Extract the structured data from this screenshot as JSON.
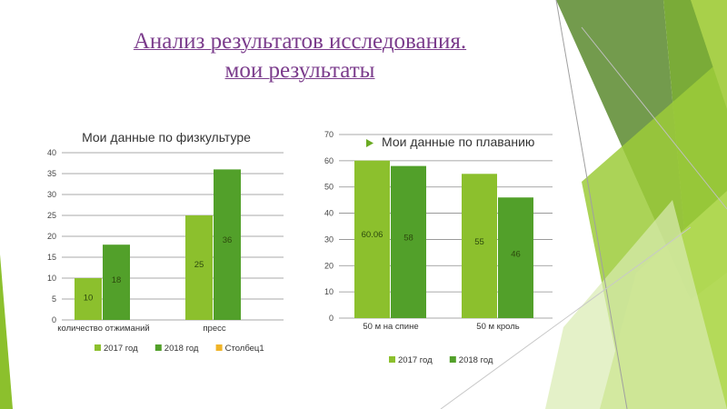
{
  "slide": {
    "title_line1": "Анализ результатов исследования.",
    "title_line2": "мои результаты"
  },
  "colors": {
    "series_2017": "#8cc02d",
    "series_2018": "#52a02a",
    "series_col1": "#f0b428",
    "title": "#7b3c8c",
    "grid": "#8c8c8c"
  },
  "chart_data": [
    {
      "type": "bar",
      "title": "Мои данные по физкультуре",
      "categories": [
        "количество отжиманий",
        "пресс"
      ],
      "series": [
        {
          "name": "2017 год",
          "values": [
            10,
            25
          ],
          "labels": [
            "10",
            "25"
          ]
        },
        {
          "name": "2018 год",
          "values": [
            18,
            36
          ],
          "labels": [
            "18",
            "36"
          ]
        },
        {
          "name": "Столбец1",
          "values": [
            null,
            null
          ],
          "labels": [
            null,
            null
          ]
        }
      ],
      "ylim": [
        0,
        40
      ],
      "yticks": [
        "0",
        "5",
        "10",
        "15",
        "20",
        "25",
        "30",
        "35",
        "40"
      ],
      "grid": true,
      "legend": "bottom"
    },
    {
      "type": "bar",
      "title": "Мои данные по плаванию",
      "categories": [
        "50 м на спине",
        "50 м кроль"
      ],
      "series": [
        {
          "name": "2017 год",
          "values": [
            60.06,
            55
          ],
          "labels": [
            "60.06",
            "55"
          ]
        },
        {
          "name": "2018 год",
          "values": [
            58,
            46
          ],
          "labels": [
            "58",
            "46"
          ]
        }
      ],
      "ylim": [
        0,
        70
      ],
      "yticks": [
        "0",
        "10",
        "20",
        "30",
        "40",
        "50",
        "60",
        "70"
      ],
      "grid": true,
      "legend": "bottom"
    }
  ]
}
